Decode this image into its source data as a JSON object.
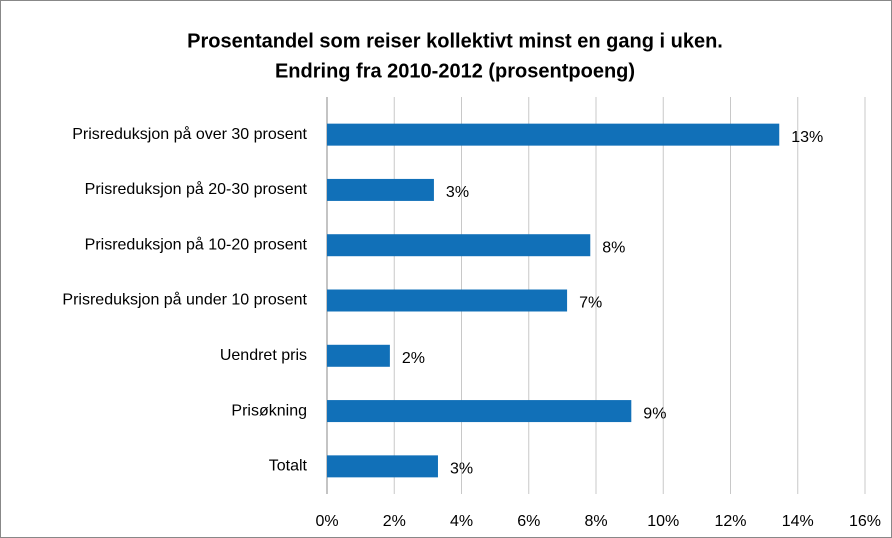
{
  "chart_data": {
    "type": "bar",
    "orientation": "horizontal",
    "title": "Prosentandel som reiser kollektivt minst en gang i uken.",
    "subtitle": "Endring fra 2010-2012 (prosentpoeng)",
    "categories": [
      "Prisreduksjon på over 30 prosent",
      "Prisreduksjon på 20-30 prosent",
      "Prisreduksjon på 10-20 prosent",
      "Prisreduksjon på under 10 prosent",
      "Uendret pris",
      "Prisøkning",
      "Totalt"
    ],
    "values": [
      13.45,
      3.18,
      7.83,
      7.14,
      1.87,
      9.05,
      3.3
    ],
    "value_labels": [
      "13%",
      "3%",
      "8%",
      "7%",
      "2%",
      "9%",
      "3%"
    ],
    "color": "#1170b8",
    "xlim": [
      0,
      16
    ],
    "xticks": [
      {
        "value": 0,
        "label": "0%"
      },
      {
        "value": 2,
        "label": "2%"
      },
      {
        "value": 4,
        "label": "4%"
      },
      {
        "value": 6,
        "label": "6%"
      },
      {
        "value": 8,
        "label": "8%"
      },
      {
        "value": 10,
        "label": "10%"
      },
      {
        "value": 12,
        "label": "12%"
      },
      {
        "value": 14,
        "label": "14%"
      },
      {
        "value": 16,
        "label": "16%"
      }
    ],
    "grid": true
  }
}
